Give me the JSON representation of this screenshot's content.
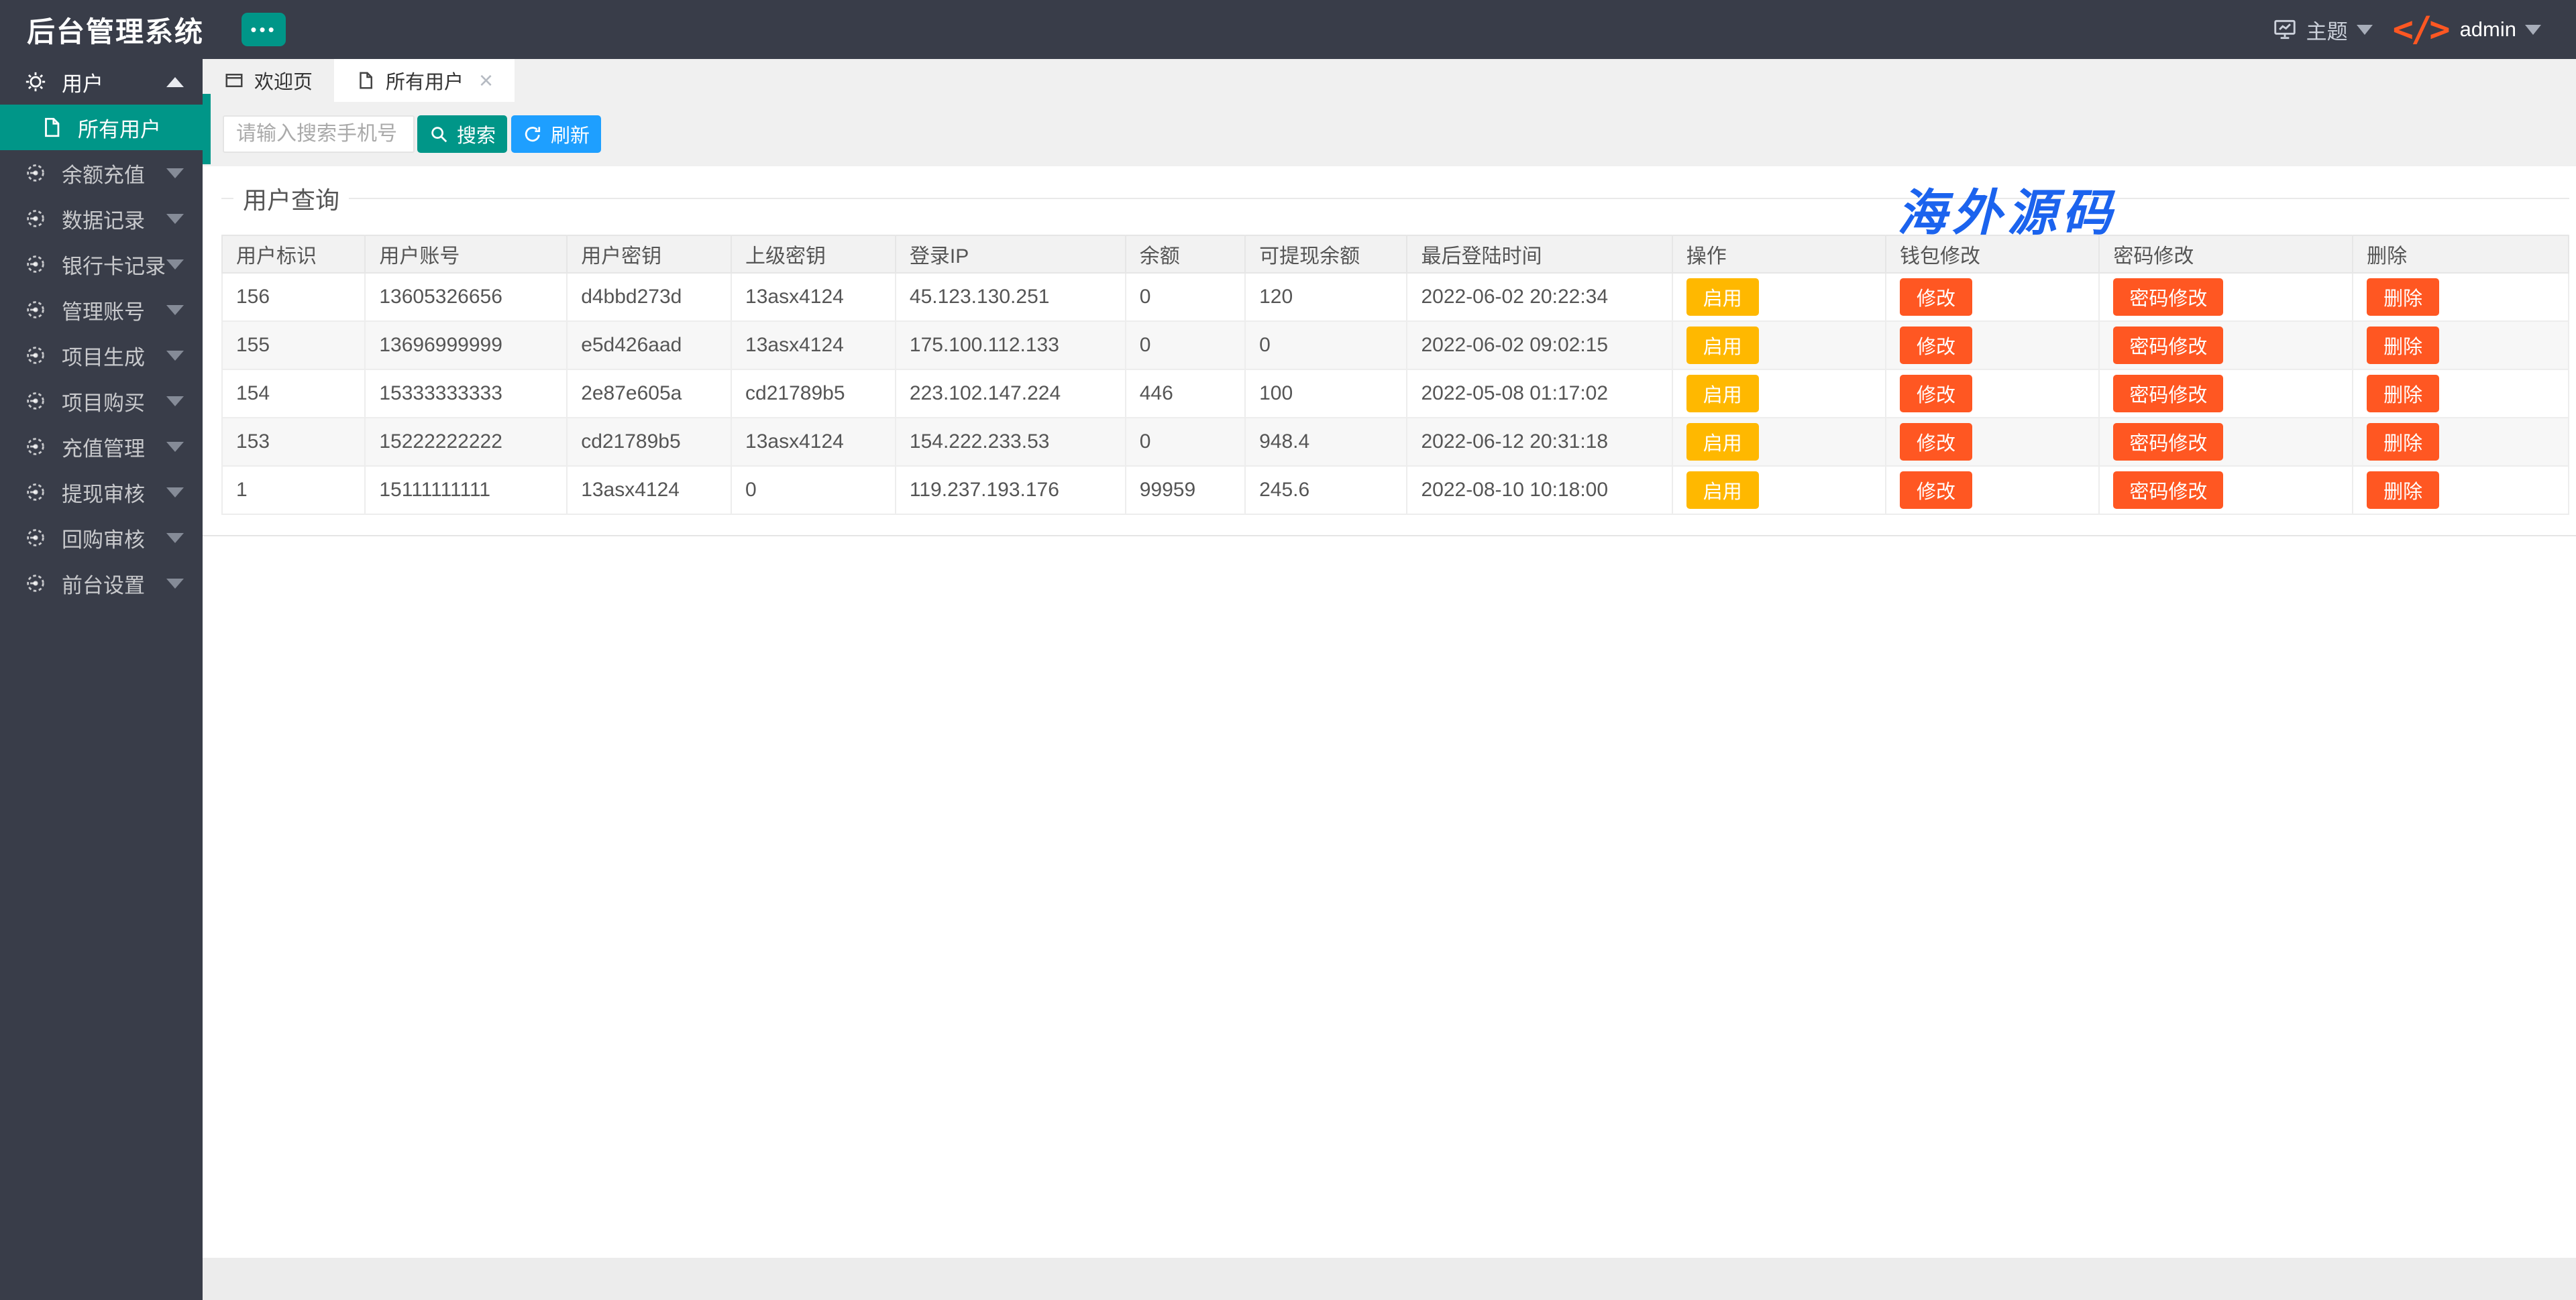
{
  "app": {
    "title": "后台管理系统"
  },
  "ui": {
    "more_glyph": "•••",
    "close_glyph": "×",
    "code_glyph": "</>"
  },
  "navbar": {
    "theme_label": "主题",
    "username": "admin"
  },
  "colors": {
    "navbar_bg": "#393D49",
    "accent_teal": "#009688",
    "accent_blue": "#1E9FFF",
    "warn_yellow": "#FFB800",
    "danger_orange": "#FF5722",
    "watermark_blue": "#1b63ee"
  },
  "sidebar": {
    "items": [
      {
        "slug": "users",
        "label": "用户",
        "icon": "gear",
        "expanded": true,
        "first": true
      },
      {
        "slug": "all-users",
        "label": "所有用户",
        "icon": "file",
        "child": true,
        "active": true
      },
      {
        "slug": "balance-recharge",
        "label": "余额充值",
        "icon": "gauge"
      },
      {
        "slug": "data-records",
        "label": "数据记录",
        "icon": "gauge"
      },
      {
        "slug": "bank-card-records",
        "label": "银行卡记录",
        "icon": "gauge"
      },
      {
        "slug": "admin-accounts",
        "label": "管理账号",
        "icon": "gauge"
      },
      {
        "slug": "project-generate",
        "label": "项目生成",
        "icon": "gauge"
      },
      {
        "slug": "project-purchase",
        "label": "项目购买",
        "icon": "gauge"
      },
      {
        "slug": "recharge-management",
        "label": "充值管理",
        "icon": "gauge"
      },
      {
        "slug": "withdrawal-review",
        "label": "提现审核",
        "icon": "gauge"
      },
      {
        "slug": "buyback-review",
        "label": "回购审核",
        "icon": "gauge"
      },
      {
        "slug": "frontend-settings",
        "label": "前台设置",
        "icon": "gauge"
      }
    ]
  },
  "tabs": [
    {
      "slug": "welcome",
      "label": "欢迎页",
      "icon": "window"
    },
    {
      "slug": "all-users",
      "label": "所有用户",
      "icon": "file",
      "active": true,
      "closable": true
    }
  ],
  "toolbar": {
    "search_placeholder": "请输入搜索手机号",
    "search_label": "搜索",
    "refresh_label": "刷新"
  },
  "section": {
    "title": "用户查询"
  },
  "watermark": "海外源码",
  "table": {
    "headers": [
      "用户标识",
      "用户账号",
      "用户密钥",
      "上级密钥",
      "登录IP",
      "余额",
      "可提现余额",
      "最后登陆时间",
      "操作",
      "钱包修改",
      "密码修改",
      "删除"
    ],
    "buttons": {
      "enable": "启用",
      "modify": "修改",
      "password": "密码修改",
      "delete": "删除"
    },
    "rows": [
      {
        "id": "156",
        "account": "13605326656",
        "user_key": "d4bbd273d",
        "parent_key": "13asx4124",
        "ip": "45.123.130.251",
        "balance": "0",
        "withdrawable": "120",
        "last_login": "2022-06-02 20:22:34"
      },
      {
        "id": "155",
        "account": "13696999999",
        "user_key": "e5d426aad",
        "parent_key": "13asx4124",
        "ip": "175.100.112.133",
        "balance": "0",
        "withdrawable": "0",
        "last_login": "2022-06-02 09:02:15"
      },
      {
        "id": "154",
        "account": "15333333333",
        "user_key": "2e87e605a",
        "parent_key": "cd21789b5",
        "ip": "223.102.147.224",
        "balance": "446",
        "withdrawable": "100",
        "last_login": "2022-05-08 01:17:02"
      },
      {
        "id": "153",
        "account": "15222222222",
        "user_key": "cd21789b5",
        "parent_key": "13asx4124",
        "ip": "154.222.233.53",
        "balance": "0",
        "withdrawable": "948.4",
        "last_login": "2022-06-12 20:31:18"
      },
      {
        "id": "1",
        "account": "15111111111",
        "user_key": "13asx4124",
        "parent_key": "0",
        "ip": "119.237.193.176",
        "balance": "99959",
        "withdrawable": "245.6",
        "last_login": "2022-08-10 10:18:00"
      }
    ]
  }
}
